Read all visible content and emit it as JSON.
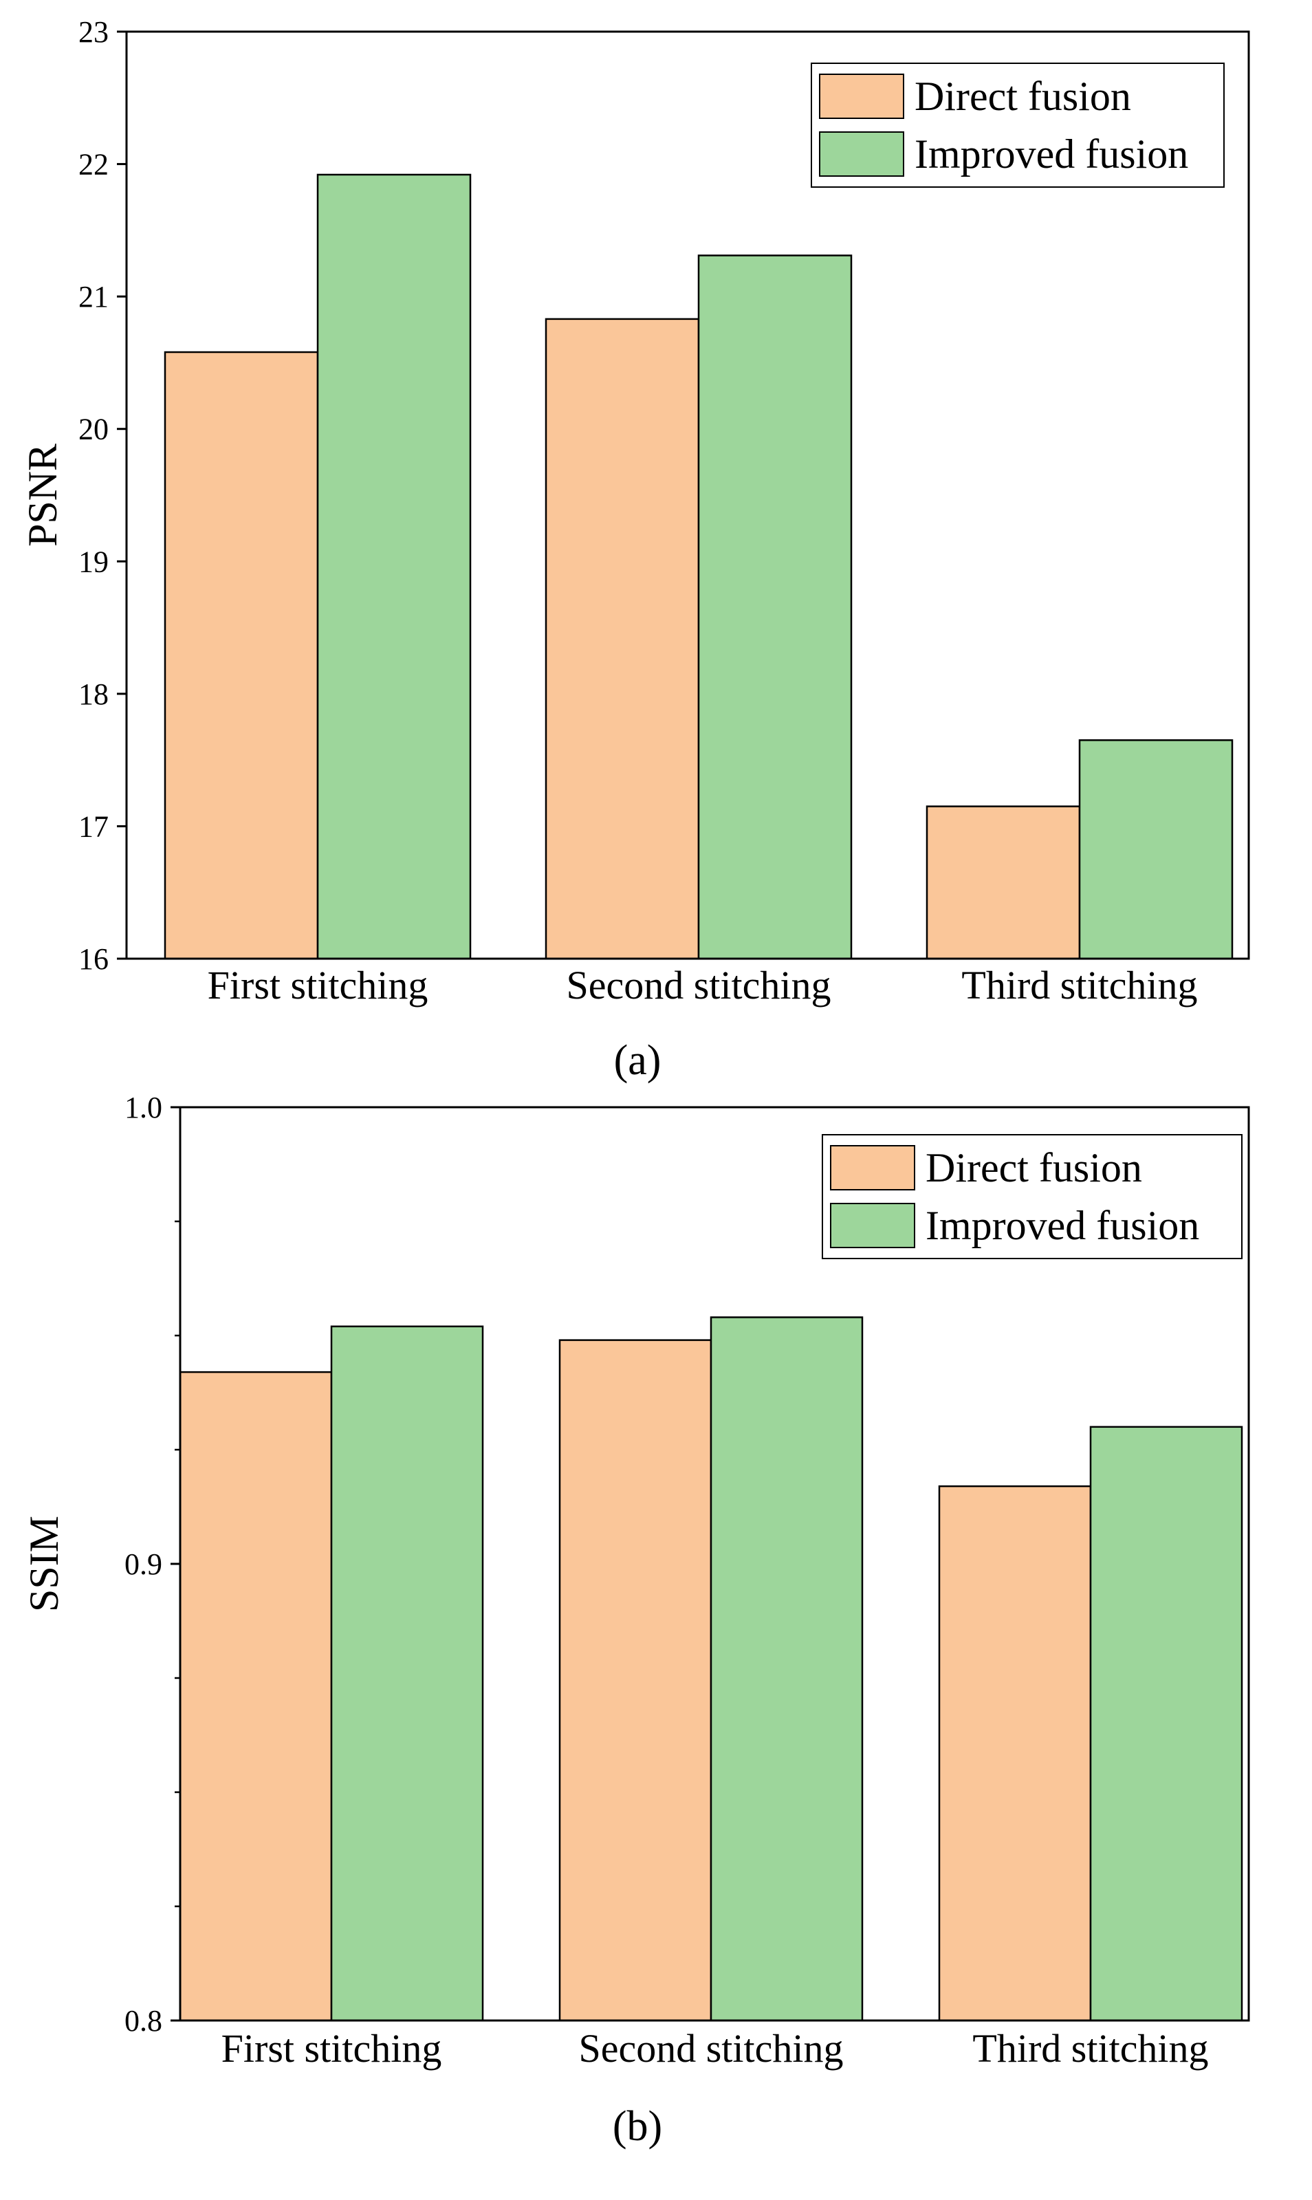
{
  "chart_data": [
    {
      "type": "bar",
      "panel_label": "(a)",
      "ylabel": "PSNR",
      "xlabel": "",
      "ylim": [
        16,
        23
      ],
      "yticks": [
        16,
        17,
        18,
        19,
        20,
        21,
        22,
        23
      ],
      "ytick_labels": [
        "16",
        "17",
        "18",
        "19",
        "20",
        "21",
        "22",
        "23"
      ],
      "categories": [
        "First stitching",
        "Second stitching",
        "Third stitching"
      ],
      "series": [
        {
          "name": "Direct fusion",
          "color": "#FAC699",
          "values": [
            20.58,
            20.83,
            17.15
          ]
        },
        {
          "name": "Improved fusion",
          "color": "#9DD69B",
          "values": [
            21.92,
            21.31,
            17.65
          ]
        }
      ],
      "legend": "top-right",
      "grid": false
    },
    {
      "type": "bar",
      "panel_label": "(b)",
      "ylabel": "SSIM",
      "xlabel": "",
      "ylim": [
        0.8,
        1.0
      ],
      "yticks": [
        0.8,
        0.9,
        1.0
      ],
      "ytick_labels": [
        "0.8",
        "0.9",
        "1.0"
      ],
      "minor_yticks": [
        0.825,
        0.85,
        0.875,
        0.925,
        0.95,
        0.975
      ],
      "categories": [
        "First stitching",
        "Second stitching",
        "Third stitching"
      ],
      "series": [
        {
          "name": "Direct fusion",
          "color": "#FAC699",
          "values": [
            0.942,
            0.949,
            0.917
          ]
        },
        {
          "name": "Improved fusion",
          "color": "#9DD69B",
          "values": [
            0.952,
            0.954,
            0.93
          ]
        }
      ],
      "legend": "top-right",
      "grid": false
    }
  ]
}
